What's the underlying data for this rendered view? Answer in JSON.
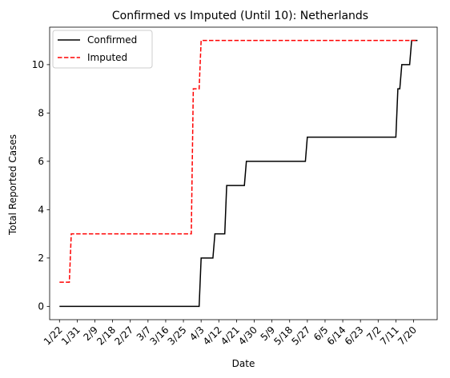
{
  "chart_data": {
    "type": "line",
    "title": "Confirmed vs Imputed (Until 10): Netherlands",
    "xlabel": "Date",
    "ylabel": "Total Reported Cases",
    "ylim": [
      -0.55,
      11.55
    ],
    "yticks": [
      0,
      2,
      4,
      6,
      8,
      10
    ],
    "xlim": [
      "1/17",
      "8/1"
    ],
    "xticks": [
      "1/22",
      "1/31",
      "2/9",
      "2/18",
      "2/27",
      "3/7",
      "3/16",
      "3/25",
      "4/3",
      "4/12",
      "4/21",
      "4/30",
      "5/9",
      "5/18",
      "5/27",
      "6/5",
      "6/14",
      "6/23",
      "7/2",
      "7/11",
      "7/20"
    ],
    "grid": false,
    "legend": "top-left",
    "series": [
      {
        "name": "Confirmed",
        "color": "#000000",
        "style": "solid",
        "points": [
          [
            "1/22",
            0
          ],
          [
            "4/2",
            0
          ],
          [
            "4/3",
            2
          ],
          [
            "4/9",
            2
          ],
          [
            "4/10",
            3
          ],
          [
            "4/15",
            3
          ],
          [
            "4/16",
            5
          ],
          [
            "4/25",
            5
          ],
          [
            "4/26",
            6
          ],
          [
            "5/26",
            6
          ],
          [
            "5/27",
            7
          ],
          [
            "7/11",
            7
          ],
          [
            "7/12",
            9
          ],
          [
            "7/13",
            9
          ],
          [
            "7/14",
            10
          ],
          [
            "7/18",
            10
          ],
          [
            "7/19",
            11
          ],
          [
            "7/22",
            11
          ]
        ]
      },
      {
        "name": "Imputed",
        "color": "#ff0000",
        "style": "dashed",
        "points": [
          [
            "1/22",
            1
          ],
          [
            "1/27",
            1
          ],
          [
            "1/28",
            3
          ],
          [
            "3/29",
            3
          ],
          [
            "3/30",
            9
          ],
          [
            "4/2",
            9
          ],
          [
            "4/3",
            11
          ],
          [
            "7/22",
            11
          ]
        ]
      }
    ]
  }
}
